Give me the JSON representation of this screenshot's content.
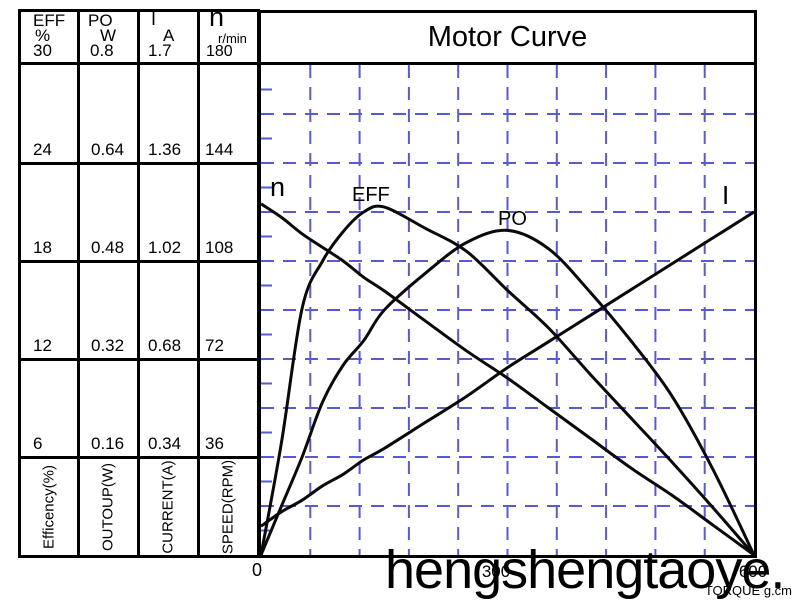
{
  "title": "Motor Curve",
  "watermark": "hengshengtaoye.",
  "colors": {
    "grid": "#5a5ad0",
    "curve": "#0a0a0a",
    "border": "#000000"
  },
  "table": {
    "columns": [
      {
        "header": [
          "EFF",
          "%",
          "30"
        ],
        "ticks": [
          "24",
          "18",
          "12",
          "6"
        ],
        "axis_name": "Efficency(%)"
      },
      {
        "header": [
          "PO",
          "W",
          "0.8"
        ],
        "ticks": [
          "0.64",
          "0.48",
          "0.32",
          "0.16"
        ],
        "axis_name": "OUTOUP(W)"
      },
      {
        "header": [
          "I",
          "A",
          "1.7"
        ],
        "ticks": [
          "1.36",
          "1.02",
          "0.68",
          "0.34"
        ],
        "axis_name": "CURRENT(A)"
      },
      {
        "header": [
          "n",
          "r/min",
          "180"
        ],
        "ticks": [
          "144",
          "108",
          "72",
          "36"
        ],
        "axis_name": "SPEED(RPM)"
      }
    ]
  },
  "chart": {
    "x_tick_labels": [
      "0",
      "300",
      "600"
    ],
    "x_axis_label": "TORQUE g.cm",
    "curve_labels": {
      "n": "n",
      "eff": "EFF",
      "po": "PO",
      "i": "I"
    }
  },
  "chart_data": {
    "type": "line",
    "title": "Motor Curve",
    "xlabel": "TORQUE g.cm",
    "x_axis": {
      "range": [
        0,
        600
      ],
      "ticks": [
        0,
        300,
        600
      ],
      "unit": "g.cm"
    },
    "grid": true,
    "legend_position": "on-curve",
    "x": [
      0,
      25,
      50,
      75,
      100,
      125,
      150,
      200,
      250,
      300,
      350,
      400,
      450,
      500,
      550,
      600
    ],
    "series": [
      {
        "name": "EFF",
        "axis_label": "Efficency(%)",
        "axis_range": [
          0,
          30
        ],
        "axis_ticks": [
          30,
          24,
          18,
          12,
          6
        ],
        "values": [
          0,
          6.9,
          15.1,
          18,
          19.8,
          21,
          21.3,
          20,
          18.6,
          16.2,
          13.9,
          11.1,
          8.4,
          5.7,
          2.9,
          0
        ]
      },
      {
        "name": "PO",
        "axis_label": "OUTOUP(W)",
        "axis_range": [
          0,
          0.8
        ],
        "axis_ticks": [
          0.8,
          0.64,
          0.48,
          0.32,
          0.16
        ],
        "values": [
          0,
          0.08,
          0.16,
          0.25,
          0.31,
          0.35,
          0.4,
          0.46,
          0.51,
          0.53,
          0.5,
          0.43,
          0.35,
          0.26,
          0.14,
          0
        ]
      },
      {
        "name": "I",
        "axis_label": "CURRENT(A)",
        "axis_range": [
          0,
          1.7
        ],
        "axis_ticks": [
          1.7,
          1.36,
          1.02,
          0.68,
          0.34
        ],
        "values": [
          0.1,
          0.15,
          0.19,
          0.24,
          0.28,
          0.33,
          0.37,
          0.46,
          0.55,
          0.65,
          0.74,
          0.83,
          0.92,
          1.01,
          1.1,
          1.19
        ]
      },
      {
        "name": "n",
        "axis_label": "SPEED(RPM)",
        "axis_range": [
          0,
          180
        ],
        "axis_ticks": [
          180,
          144,
          108,
          72,
          36
        ],
        "values": [
          129,
          124,
          118,
          113,
          108,
          102,
          97,
          86,
          75,
          65,
          54,
          43,
          32,
          22,
          11,
          0
        ]
      }
    ]
  }
}
